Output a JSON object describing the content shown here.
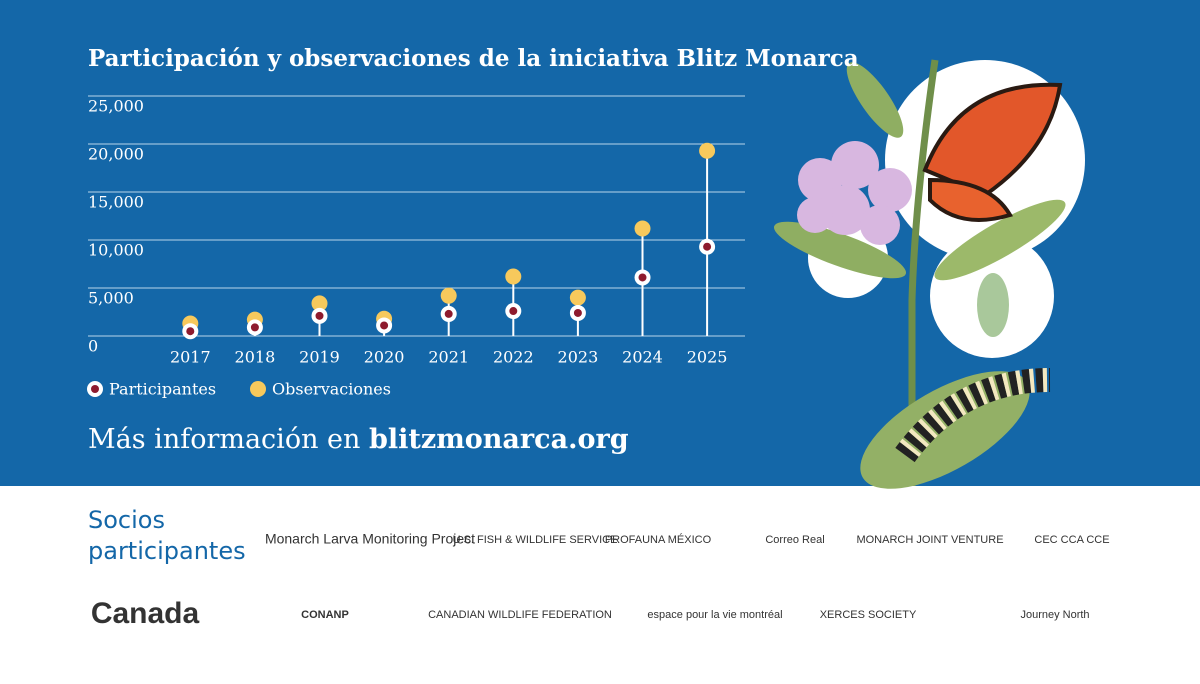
{
  "chart_data": {
    "type": "lollipop",
    "title": "Participación y observaciones de la iniciativa Blitz Monarca",
    "categories": [
      "2017",
      "2018",
      "2019",
      "2020",
      "2021",
      "2022",
      "2023",
      "2024",
      "2025"
    ],
    "series": [
      {
        "name": "Participantes",
        "color": "#8e1b2e",
        "values": [
          500,
          900,
          2100,
          1100,
          2300,
          2600,
          2400,
          6100,
          9300
        ]
      },
      {
        "name": "Observaciones",
        "color": "#f7c95c",
        "values": [
          1300,
          1700,
          3400,
          1800,
          4200,
          6200,
          4000,
          11200,
          19300
        ]
      }
    ],
    "ylim": [
      0,
      25000
    ],
    "yticks": [
      0,
      {
        "value": 5000,
        "label": "5,000"
      },
      {
        "value": 10000,
        "label": "10,000"
      },
      {
        "value": 15000,
        "label": "15,000"
      },
      {
        "value": 20000,
        "label": "20,000"
      },
      {
        "value": 25000,
        "label": "25,000"
      }
    ],
    "grid": true
  },
  "more_info": {
    "prefix": "Más información en",
    "link": "blitzmonarca.org"
  },
  "partners": {
    "heading_line1": "Socios",
    "heading_line2": "participantes",
    "logos": [
      "Monarch Larva Monitoring Project",
      "U.S. FISH & WILDLIFE SERVICE",
      "PROFAUNA MÉXICO",
      "Correo Real",
      "MONARCH JOINT VENTURE",
      "CEC CCA CCE",
      "Canada",
      "CONANP",
      "CANADIAN WILDLIFE FEDERATION",
      "espace pour la vie montréal",
      "XERCES SOCIETY",
      "Journey North"
    ]
  }
}
